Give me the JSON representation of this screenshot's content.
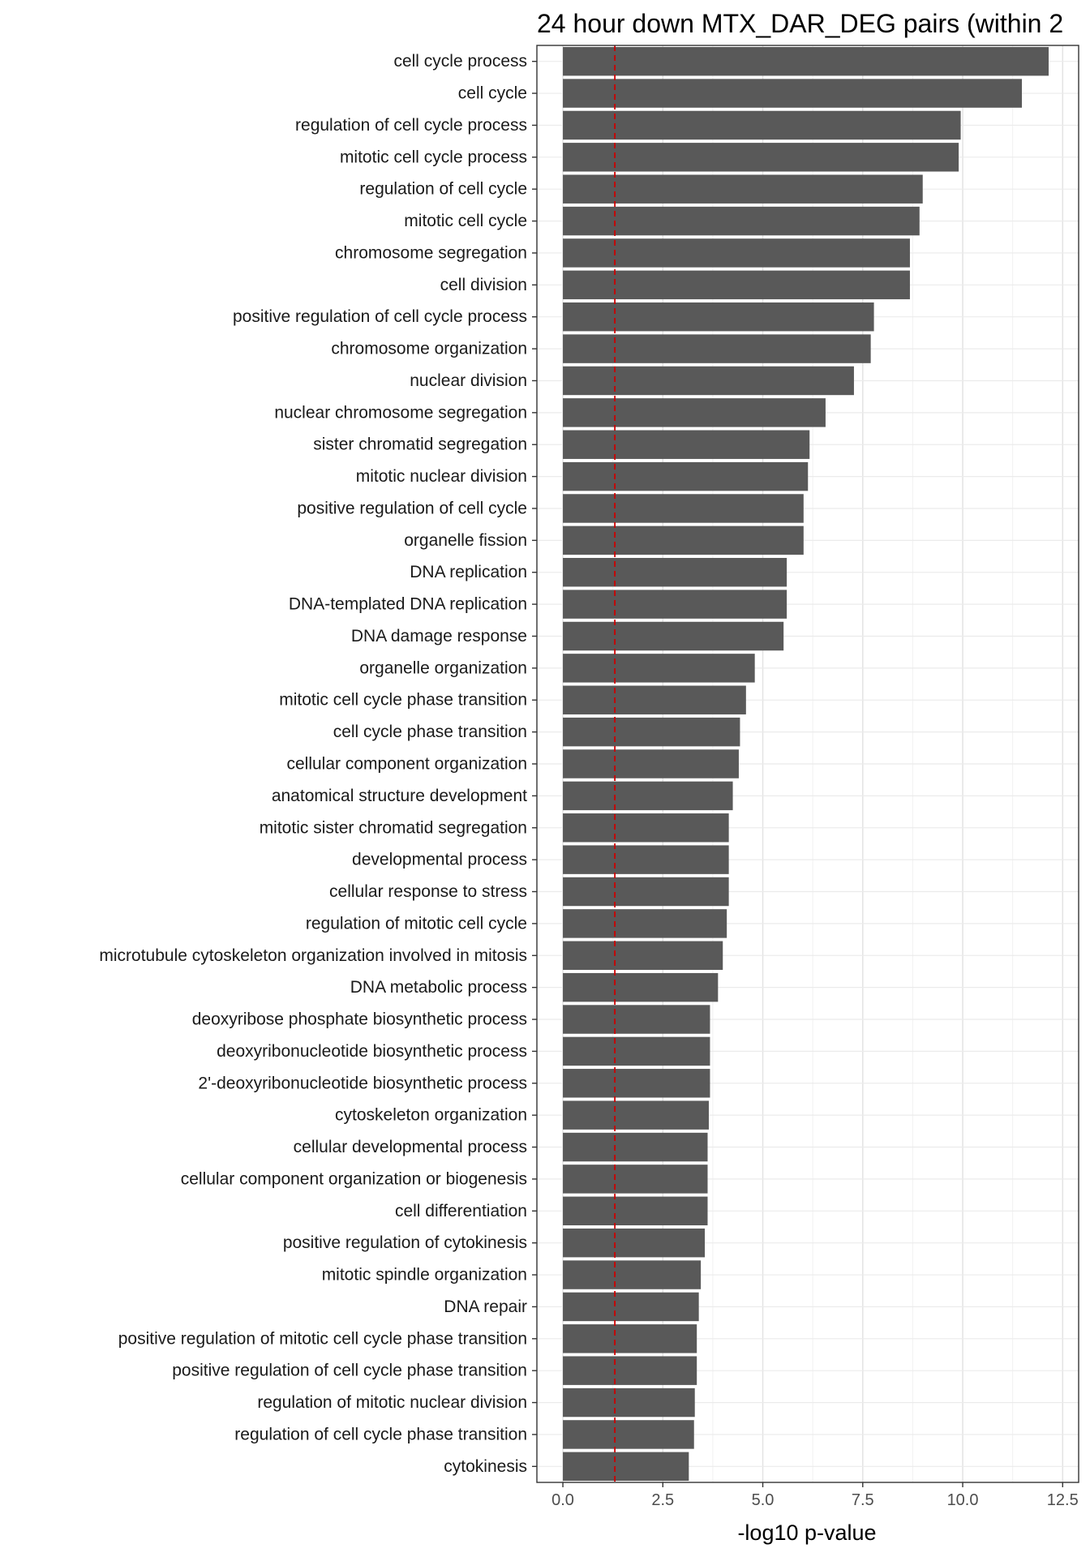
{
  "chart_data": {
    "type": "bar",
    "orientation": "horizontal",
    "title": "24 hour down MTX_DAR_DEG pairs (within 2",
    "xlabel": "-log10 p-value",
    "ylabel": "",
    "xlim": [
      -0.65,
      12.9
    ],
    "x_ticks": [
      0,
      2.5,
      5,
      7.5,
      10,
      12.5
    ],
    "x_tick_labels": [
      "0.0",
      "2.5",
      "5.0",
      "7.5",
      "10.0",
      "12.5"
    ],
    "grid": true,
    "legend": "none",
    "bar_color": "#595959",
    "reference_line": {
      "value": 1.3,
      "color": "#cc0000",
      "style": "dashed"
    },
    "categories": [
      "cell cycle process",
      "cell cycle",
      "regulation of cell cycle process",
      "mitotic cell cycle process",
      "regulation of cell cycle",
      "mitotic cell cycle",
      "chromosome segregation",
      "cell division",
      "positive regulation of cell cycle process",
      "chromosome organization",
      "nuclear division",
      "nuclear chromosome segregation",
      "sister chromatid segregation",
      "mitotic nuclear division",
      "positive regulation of cell cycle",
      "organelle fission",
      "DNA replication",
      "DNA-templated DNA replication",
      "DNA damage response",
      "organelle organization",
      "mitotic cell cycle phase transition",
      "cell cycle phase transition",
      "cellular component organization",
      "anatomical structure development",
      "mitotic sister chromatid segregation",
      "developmental process",
      "cellular response to stress",
      "regulation of mitotic cell cycle",
      "microtubule cytoskeleton organization involved in mitosis",
      "DNA metabolic process",
      "deoxyribose phosphate biosynthetic process",
      "deoxyribonucleotide biosynthetic process",
      "2'-deoxyribonucleotide biosynthetic process",
      "cytoskeleton organization",
      "cellular developmental process",
      "cellular component organization or biogenesis",
      "cell differentiation",
      "positive regulation of cytokinesis",
      "mitotic spindle organization",
      "DNA repair",
      "positive regulation of mitotic cell cycle phase transition",
      "positive regulation of cell cycle phase transition",
      "regulation of mitotic nuclear division",
      "regulation of cell cycle phase transition",
      "cytokinesis"
    ],
    "values": [
      12.15,
      11.48,
      9.95,
      9.9,
      9.0,
      8.92,
      8.68,
      8.68,
      7.78,
      7.7,
      7.28,
      6.57,
      6.17,
      6.13,
      6.02,
      6.02,
      5.6,
      5.6,
      5.52,
      4.8,
      4.58,
      4.43,
      4.4,
      4.25,
      4.15,
      4.15,
      4.15,
      4.1,
      4.0,
      3.88,
      3.68,
      3.68,
      3.68,
      3.65,
      3.62,
      3.62,
      3.62,
      3.55,
      3.45,
      3.4,
      3.35,
      3.35,
      3.3,
      3.28,
      3.15
    ]
  }
}
